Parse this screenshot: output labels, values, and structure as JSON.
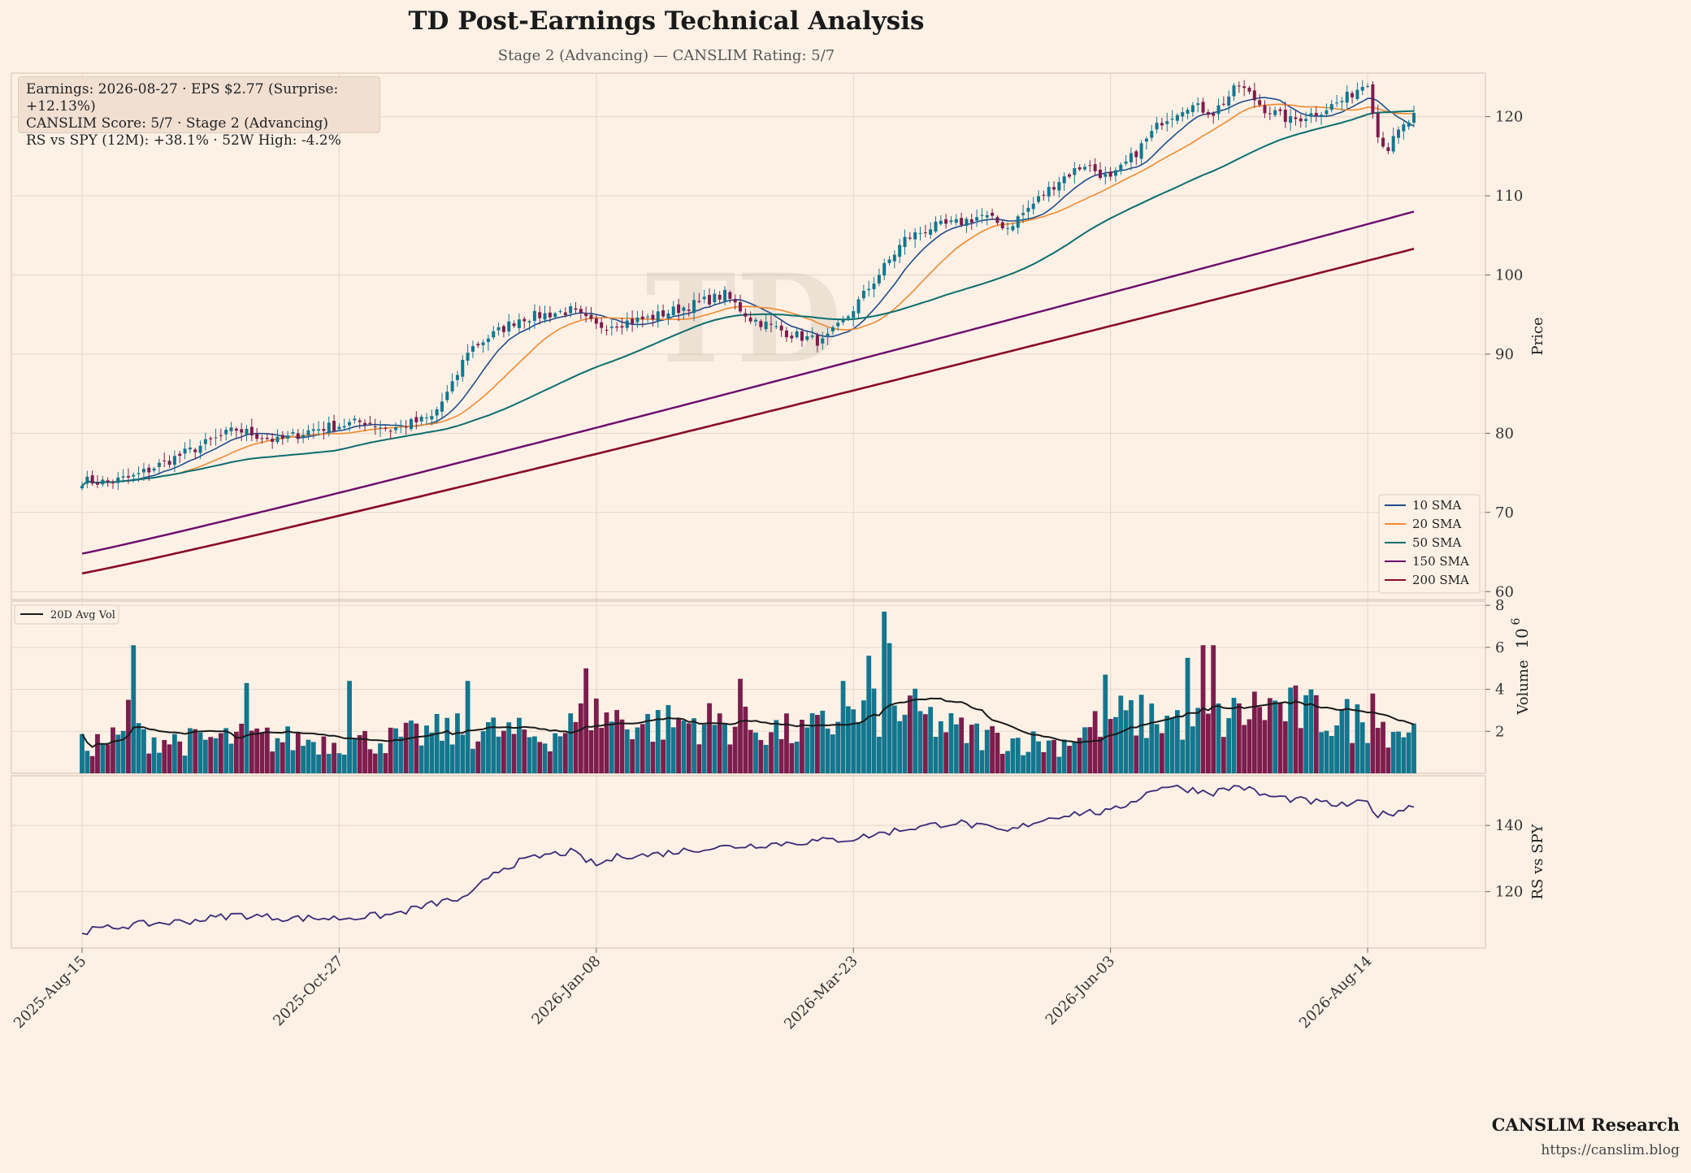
{
  "header": {
    "title": "TD Post-Earnings Technical Analysis",
    "subtitle": "Stage 2 (Advancing) — CANSLIM Rating: 5/7"
  },
  "info": {
    "line1": "Earnings: 2026-08-27 · EPS $2.77 (Surprise: +12.13%)",
    "line2": "CANSLIM Score: 5/7 · Stage 2 (Advancing)",
    "line3": "RS vs SPY (12M): +38.1% · 52W High: -4.2%"
  },
  "footer": {
    "brand": "CANSLIM Research",
    "url": "https://canslim.blog"
  },
  "colors": {
    "background": "#fdf1e6",
    "up": "#13768f",
    "down": "#7c1d4d",
    "sma10": "#1f4e8c",
    "sma20": "#f08a2e",
    "sma50": "#0b6e6e",
    "sma150": "#6d0a6d",
    "sma200": "#8a0a2a",
    "avgvol": "#1a1a1a",
    "rs": "#3b2a78"
  },
  "chart_data": [
    {
      "type": "candlestick",
      "panel": "price",
      "watermark": "TD",
      "ylabel": "Price",
      "ylim": [
        59,
        125.5
      ],
      "yticks": [
        60,
        70,
        80,
        90,
        100,
        110,
        120
      ],
      "x_ticks": [
        "2025-Aug-15",
        "2025-Oct-27",
        "2026-Jan-08",
        "2026-Mar-23",
        "2026-Jun-03",
        "2026-Aug-14"
      ],
      "x_tick_index": [
        0,
        50,
        100,
        150,
        200,
        250
      ],
      "n_days": 260,
      "price_path": {
        "index": [
          0,
          5,
          10,
          20,
          30,
          38,
          45,
          55,
          60,
          68,
          72,
          75,
          80,
          85,
          95,
          100,
          110,
          120,
          125,
          130,
          138,
          144,
          148,
          152,
          160,
          165,
          170,
          175,
          180,
          185,
          190,
          195,
          200,
          205,
          210,
          215,
          220,
          225,
          230,
          235,
          240,
          245,
          250,
          252,
          254,
          256,
          259
        ],
        "close": [
          74,
          73.8,
          74.5,
          77.5,
          80.5,
          79,
          80.5,
          81.5,
          80.5,
          82,
          86,
          90.5,
          92.5,
          94.5,
          95.5,
          93.5,
          94.5,
          96.5,
          97.5,
          94.5,
          92.5,
          91.5,
          94,
          97.5,
          104.5,
          106,
          106.5,
          107.5,
          106,
          109,
          112,
          114,
          112,
          115.5,
          119.5,
          121.5,
          120.5,
          124,
          121,
          119.5,
          120.5,
          122,
          124.5,
          117.5,
          116,
          118,
          120
        ]
      },
      "moving_averages": [
        {
          "name": "10 SMA"
        },
        {
          "name": "20 SMA"
        },
        {
          "name": "50 SMA"
        },
        {
          "name": "150 SMA",
          "start": 64.8,
          "end": 108
        },
        {
          "name": "200 SMA",
          "start": 62.3,
          "end": 103.3
        }
      ],
      "legend_position": "lower-right"
    },
    {
      "type": "bar",
      "panel": "volume",
      "ylabel": "Volume",
      "y_multiplier": "10^6",
      "ylim": [
        0,
        8.2
      ],
      "yticks": [
        2,
        4,
        6,
        8
      ],
      "series": [
        {
          "name": "20D Avg Vol"
        }
      ],
      "volume_path": {
        "index": [
          0,
          10,
          20,
          30,
          40,
          50,
          60,
          70,
          80,
          90,
          100,
          110,
          120,
          130,
          140,
          150,
          160,
          170,
          180,
          190,
          200,
          210,
          220,
          230,
          240,
          250,
          259
        ],
        "value": [
          1.3,
          1.8,
          1.5,
          1.7,
          1.6,
          1.5,
          1.6,
          2.0,
          2.0,
          1.7,
          2.8,
          2.3,
          2.5,
          2.2,
          1.9,
          2.7,
          3.0,
          2.0,
          1.6,
          1.4,
          2.7,
          2.6,
          2.4,
          3.2,
          2.8,
          2.4,
          2.0
        ],
        "spikes": [
          [
            9,
            3.5
          ],
          [
            10,
            6.1
          ],
          [
            32,
            4.3
          ],
          [
            52,
            4.4
          ],
          [
            75,
            4.4
          ],
          [
            98,
            5.0
          ],
          [
            128,
            4.5
          ],
          [
            148,
            4.4
          ],
          [
            153,
            5.6
          ],
          [
            156,
            7.7
          ],
          [
            157,
            6.2
          ],
          [
            199,
            4.7
          ],
          [
            215,
            5.5
          ],
          [
            218,
            6.1
          ],
          [
            220,
            6.1
          ],
          [
            251,
            3.8
          ]
        ]
      },
      "legend_position": "top-left"
    },
    {
      "type": "line",
      "panel": "relative_strength",
      "ylabel": "RS vs SPY",
      "ylim": [
        103,
        155
      ],
      "yticks": [
        120,
        140
      ],
      "series": [
        {
          "name": "RS vs SPY",
          "index": [
            0,
            10,
            20,
            30,
            40,
            50,
            60,
            70,
            75,
            80,
            85,
            90,
            95,
            100,
            105,
            110,
            115,
            120,
            130,
            140,
            150,
            160,
            170,
            180,
            185,
            190,
            195,
            200,
            205,
            210,
            215,
            220,
            225,
            230,
            235,
            240,
            245,
            250,
            252,
            255,
            259
          ],
          "value": [
            108,
            110,
            111,
            113,
            112,
            112,
            113,
            117,
            118,
            126,
            129,
            131,
            132,
            128,
            131,
            131,
            132,
            133,
            134,
            135,
            136,
            139,
            141,
            138,
            141,
            143,
            144,
            144,
            148,
            152,
            151,
            150,
            152,
            149,
            148,
            147,
            146,
            147,
            143,
            144,
            146
          ]
        }
      ]
    }
  ]
}
